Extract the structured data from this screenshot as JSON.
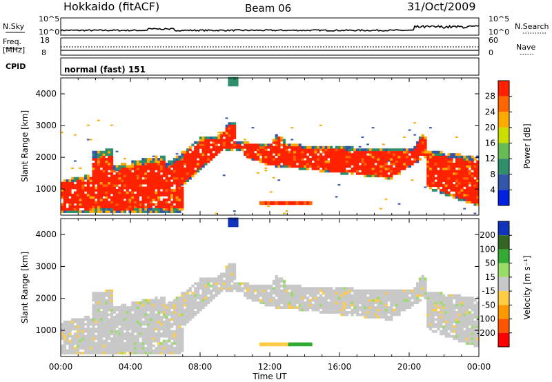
{
  "header": {
    "station": "Hokkaido (fitACF)",
    "beam": "Beam 06",
    "date": "31/Oct/2009"
  },
  "status_panels": {
    "nsky_label": "N.Sky",
    "nsky_scale_hi": "10^5",
    "nsky_scale_lo": "10^0",
    "nsearch_label": "N.Search",
    "nsearch_scale_hi": "10^5",
    "nsearch_scale_lo": "10^0",
    "freq_label": "Freq.",
    "freq_unit": "[MHz]",
    "freq_hi": "18",
    "freq_lo": "8",
    "nave_label": "Nave",
    "nave_hi": "60",
    "nave_lo": "0",
    "cpid_label": "CPID",
    "cpid_value": "normal (fast) 151"
  },
  "chart_data": [
    {
      "type": "heatmap",
      "name": "power",
      "ylabel": "Slant Range [km]",
      "ylim": [
        180,
        4500
      ],
      "yticks": [
        "1000",
        "2000",
        "3000",
        "4000"
      ],
      "ytick_values": [
        1000,
        2000,
        3000,
        4000
      ],
      "xlim_hours": [
        0,
        24
      ],
      "colorbar": {
        "label": "Power [dB]",
        "ticks": [
          "4",
          "8",
          "12",
          "16",
          "20",
          "24",
          "28"
        ],
        "colors": [
          "#0022dd",
          "#3355aa",
          "#2f8f6a",
          "#66bb55",
          "#ccdd00",
          "#ffaa00",
          "#ff6600",
          "#ff2200"
        ]
      }
    },
    {
      "type": "heatmap",
      "name": "velocity",
      "ylabel": "Slant Range [km]",
      "ylim": [
        180,
        4500
      ],
      "yticks": [
        "1000",
        "2000",
        "3000",
        "4000"
      ],
      "ytick_values": [
        1000,
        2000,
        3000,
        4000
      ],
      "xlim_hours": [
        0,
        24
      ],
      "colorbar": {
        "label": "Velocity [m s⁻¹]",
        "ticks": [
          "200",
          "100",
          "50",
          "15",
          "-15",
          "-50",
          "-100",
          "-200"
        ],
        "colors": [
          "#1133bb",
          "#336622",
          "#33aa33",
          "#99dd66",
          "#c8c8c8",
          "#ffcc44",
          "#ff9900",
          "#ff5500",
          "#ff0000"
        ]
      }
    }
  ],
  "xaxis": {
    "label": "Time UT",
    "ticks": [
      "00:00",
      "04:00",
      "08:00",
      "12:00",
      "16:00",
      "20:00",
      "00:00"
    ],
    "tick_hours": [
      0,
      4,
      8,
      12,
      16,
      20,
      24
    ]
  },
  "colors": {
    "power_main": "#ff1a00",
    "velocity_ground": "#c8c8c8"
  }
}
